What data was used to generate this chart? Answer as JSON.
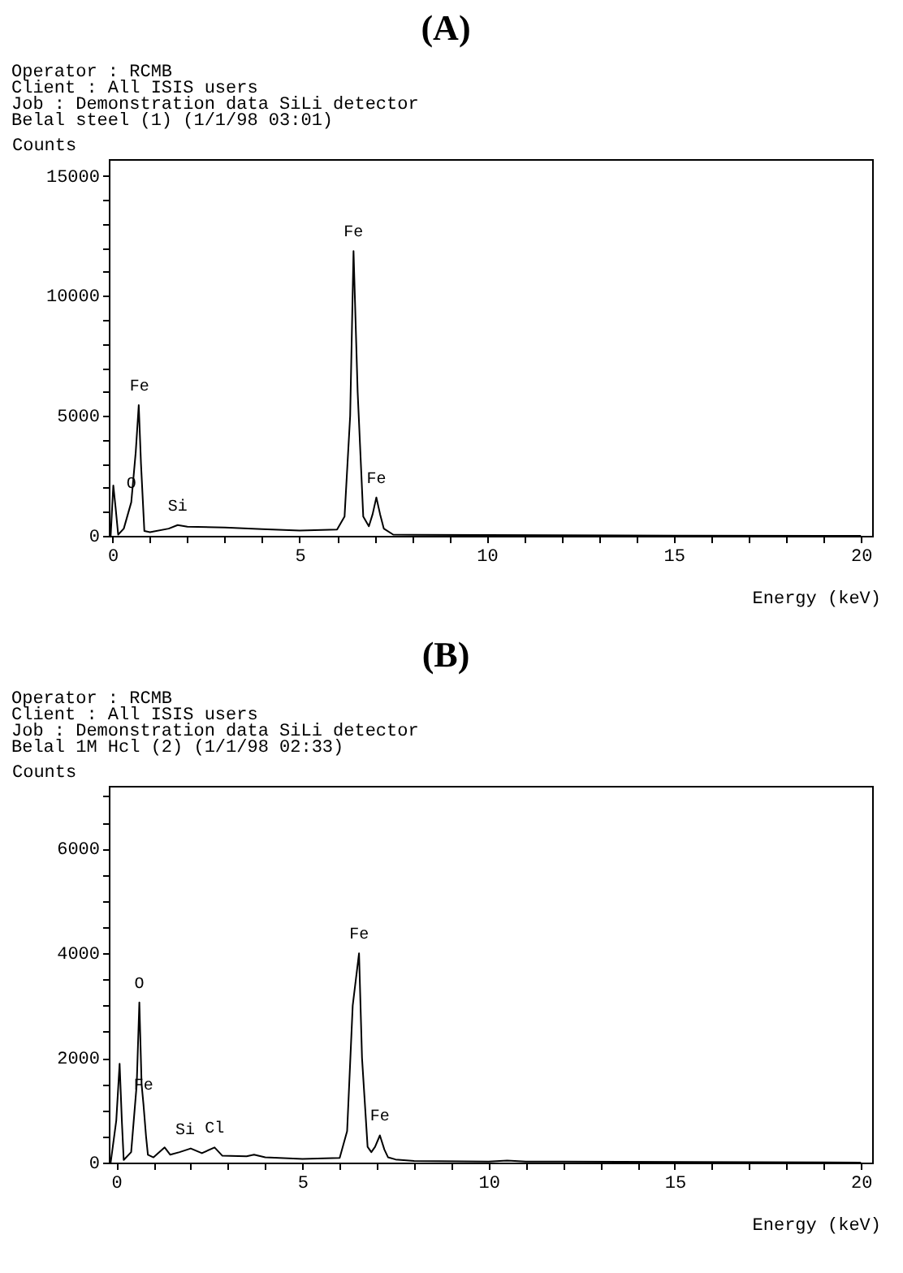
{
  "chart_data": [
    {
      "type": "line",
      "title": "(A)",
      "xlabel": "Energy (keV)",
      "ylabel": "Counts",
      "grid": false,
      "marker": "none",
      "line_style": "solid",
      "xlim": [
        -0.1,
        20.3
      ],
      "ylim": [
        0,
        15700
      ],
      "xticks": [
        0,
        {
          "value": 1,
          "label": null
        },
        {
          "value": 2,
          "label": null
        },
        {
          "value": 3,
          "label": null
        },
        {
          "value": 4,
          "label": null
        },
        5,
        {
          "value": 6,
          "label": null
        },
        {
          "value": 7,
          "label": null
        },
        {
          "value": 8,
          "label": null
        },
        {
          "value": 9,
          "label": null
        },
        10,
        {
          "value": 11,
          "label": null
        },
        {
          "value": 12,
          "label": null
        },
        {
          "value": 13,
          "label": null
        },
        {
          "value": 14,
          "label": null
        },
        15,
        {
          "value": 16,
          "label": null
        },
        {
          "value": 17,
          "label": null
        },
        {
          "value": 18,
          "label": null
        },
        {
          "value": 19,
          "label": null
        },
        20
      ],
      "yticks": [
        0,
        {
          "value": 1000,
          "label": null
        },
        {
          "value": 2000,
          "label": null
        },
        {
          "value": 3000,
          "label": null
        },
        {
          "value": 4000,
          "label": null
        },
        5000,
        {
          "value": 6000,
          "label": null
        },
        {
          "value": 7000,
          "label": null
        },
        {
          "value": 8000,
          "label": null
        },
        {
          "value": 9000,
          "label": null
        },
        10000,
        {
          "value": 11000,
          "label": null
        },
        {
          "value": 12000,
          "label": null
        },
        {
          "value": 13000,
          "label": null
        },
        {
          "value": 14000,
          "label": null
        },
        15000
      ],
      "series": [
        {
          "color": "#000000",
          "x": [
            -0.05,
            0.0,
            0.02,
            0.08,
            0.15,
            0.3,
            0.5,
            0.62,
            0.7,
            0.76,
            0.85,
            1.0,
            1.5,
            1.74,
            2.0,
            3.0,
            4.0,
            5.0,
            6.0,
            6.2,
            6.35,
            6.44,
            6.55,
            6.7,
            6.85,
            6.95,
            7.05,
            7.15,
            7.25,
            7.5,
            10,
            15,
            20
          ],
          "values": [
            0,
            1500,
            2100,
            1200,
            50,
            300,
            1400,
            3500,
            5450,
            3000,
            200,
            150,
            300,
            450,
            380,
            350,
            280,
            220,
            260,
            800,
            5000,
            11870,
            6000,
            800,
            400,
            900,
            1600,
            900,
            300,
            50,
            30,
            10,
            0
          ]
        }
      ],
      "annotations": [
        "Operator : RCMB",
        "Client : All  ISIS  users",
        "Job : Demonstration data  SiLi detector",
        "Belal steel (1) (1/1/98 03:01)",
        {
          "text": "Fe",
          "x": 0.72,
          "y": 5450
        },
        {
          "text": "O",
          "x": 0.5,
          "y": 1400
        },
        {
          "text": "Si",
          "x": 1.74,
          "y": 450
        },
        {
          "text": "Fe",
          "x": 6.44,
          "y": 11870
        },
        {
          "text": "Fe",
          "x": 7.05,
          "y": 1600
        }
      ]
    },
    {
      "type": "line",
      "title": "(B)",
      "xlabel": "Energy (keV)",
      "ylabel": "Counts",
      "grid": false,
      "marker": "none",
      "line_style": "solid",
      "xlim": [
        -0.2,
        20.3
      ],
      "ylim": [
        0,
        7200
      ],
      "xticks": [
        0,
        {
          "value": 1,
          "label": null
        },
        {
          "value": 2,
          "label": null
        },
        {
          "value": 3,
          "label": null
        },
        {
          "value": 4,
          "label": null
        },
        5,
        {
          "value": 6,
          "label": null
        },
        {
          "value": 7,
          "label": null
        },
        {
          "value": 8,
          "label": null
        },
        {
          "value": 9,
          "label": null
        },
        10,
        {
          "value": 11,
          "label": null
        },
        {
          "value": 12,
          "label": null
        },
        {
          "value": 13,
          "label": null
        },
        {
          "value": 14,
          "label": null
        },
        15,
        {
          "value": 16,
          "label": null
        },
        {
          "value": 17,
          "label": null
        },
        {
          "value": 18,
          "label": null
        },
        {
          "value": 19,
          "label": null
        },
        20
      ],
      "yticks": [
        0,
        {
          "value": 500,
          "label": null
        },
        {
          "value": 1000,
          "label": null
        },
        {
          "value": 1500,
          "label": null
        },
        2000,
        {
          "value": 2500,
          "label": null
        },
        {
          "value": 3000,
          "label": null
        },
        {
          "value": 3500,
          "label": null
        },
        4000,
        {
          "value": 4500,
          "label": null
        },
        {
          "value": 5000,
          "label": null
        },
        {
          "value": 5500,
          "label": null
        },
        6000,
        {
          "value": 6500,
          "label": null
        },
        {
          "value": 7000,
          "label": null
        }
      ],
      "series": [
        {
          "color": "#000000",
          "x": [
            -0.15,
            0.0,
            0.09,
            0.15,
            0.2,
            0.4,
            0.55,
            0.62,
            0.68,
            0.73,
            0.8,
            0.85,
            1.0,
            1.3,
            1.45,
            1.7,
            2.0,
            2.3,
            2.64,
            2.85,
            3.5,
            3.7,
            4.0,
            5.0,
            6.0,
            6.2,
            6.35,
            6.52,
            6.6,
            6.75,
            6.85,
            6.95,
            7.08,
            7.2,
            7.3,
            7.5,
            8,
            10,
            10.5,
            11,
            12,
            20
          ],
          "values": [
            0,
            800,
            1890,
            800,
            50,
            200,
            1500,
            3060,
            1500,
            1120,
            500,
            150,
            100,
            290,
            150,
            200,
            270,
            180,
            290,
            130,
            120,
            150,
            100,
            70,
            90,
            600,
            3000,
            4000,
            2000,
            300,
            200,
            300,
            520,
            250,
            100,
            60,
            30,
            20,
            40,
            20,
            20,
            0
          ]
        }
      ],
      "annotations": [
        "Operator : RCMB",
        "Client : All  ISIS  users",
        "Job : Demonstration data  SiLi detector",
        "Belal 1M Hcl (2) (1/1/98 02:33)",
        {
          "text": "O",
          "x": 0.62,
          "y": 3060
        },
        {
          "text": "Fe",
          "x": 0.73,
          "y": 1120
        },
        {
          "text": "Si",
          "x": 1.85,
          "y": 270
        },
        {
          "text": "Cl",
          "x": 2.64,
          "y": 290
        },
        {
          "text": "Fe",
          "x": 6.52,
          "y": 4000
        },
        {
          "text": "Fe",
          "x": 7.08,
          "y": 520
        }
      ]
    }
  ]
}
